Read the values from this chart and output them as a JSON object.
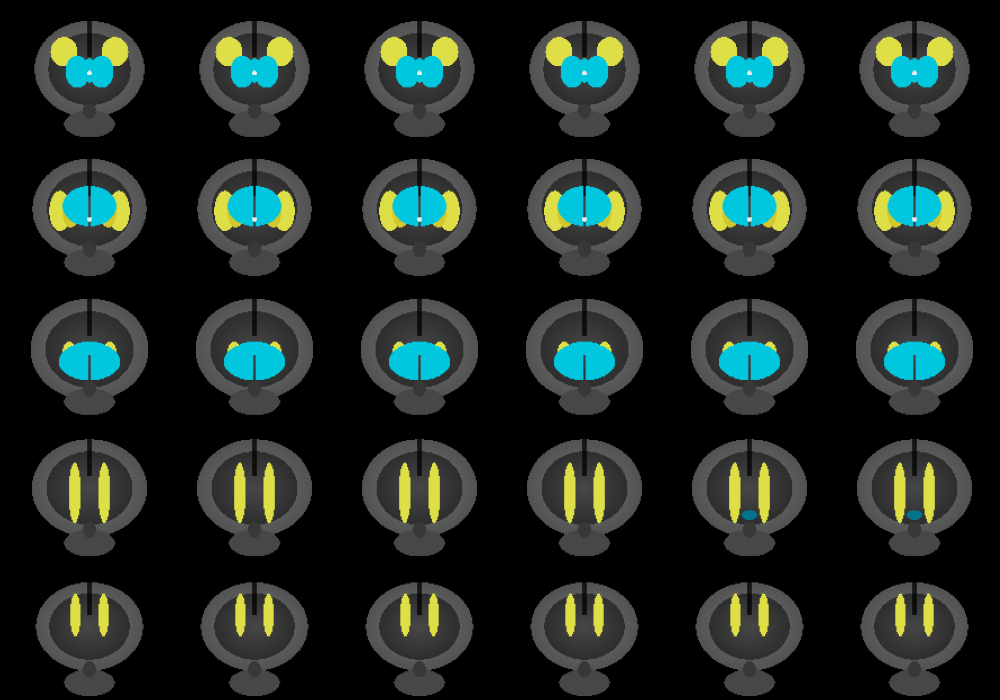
{
  "background_color": "#000000",
  "figsize": [
    10.0,
    7.0
  ],
  "dpi": 100,
  "grid_cols": 6,
  "grid_rows": 5,
  "brain_color_dark": 0.18,
  "brain_color_mid": 0.38,
  "brain_color_light": 0.55,
  "cyan_color": [
    0.0,
    0.85,
    0.95
  ],
  "yellow_color": [
    0.95,
    0.95,
    0.3
  ],
  "white_color": [
    1.0,
    1.0,
    1.0
  ],
  "row_types": [
    0,
    1,
    2,
    3,
    4
  ]
}
